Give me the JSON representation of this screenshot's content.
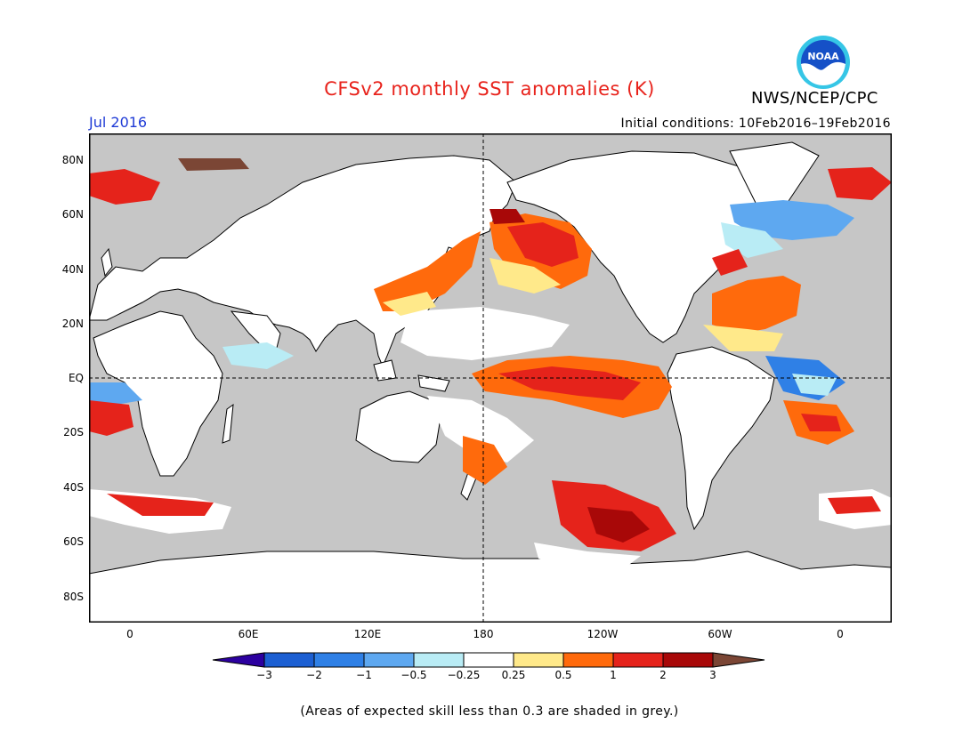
{
  "title": "CFSv2 monthly SST anomalies (K)",
  "organization": "NWS/NCEP/CPC",
  "logo_text": "NOAA",
  "valid_month": "Jul 2016",
  "initial_conditions": "Initial conditions: 10Feb2016–19Feb2016",
  "lat_labels": [
    "80N",
    "60N",
    "40N",
    "20N",
    "EQ",
    "20S",
    "40S",
    "60S",
    "80S"
  ],
  "lon_labels": [
    "0",
    "60E",
    "120E",
    "180",
    "120W",
    "60W",
    "0"
  ],
  "colorbar": {
    "labels": [
      "−3",
      "−2",
      "−1",
      "−0.5",
      "−0.25",
      "0.25",
      "0.5",
      "1",
      "2",
      "3"
    ],
    "colors": [
      "#2c00a0",
      "#1c5fd2",
      "#2f80e6",
      "#5ea8f0",
      "#b9ecf5",
      "#ffffff",
      "#ffe98a",
      "#ff6a0c",
      "#e5231b",
      "#a80808",
      "#7b4635"
    ]
  },
  "footnote": "(Areas of expected skill less than 0.3 are shaded in grey.)",
  "map_colors": {
    "land": "#ffffff",
    "grey_skill": "#c6c6c6",
    "grid": "#777777"
  }
}
